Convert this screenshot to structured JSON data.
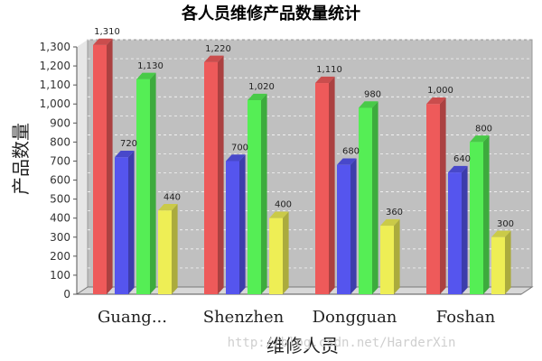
{
  "chart_data": {
    "type": "bar",
    "title": "各人员维修产品数量统计",
    "xlabel": "维修人员",
    "ylabel": "产品数量",
    "categories": [
      "Guang...",
      "Shenzhen",
      "Dongguan",
      "Foshan"
    ],
    "series": [
      {
        "values": [
          1310,
          1220,
          1110,
          1000
        ],
        "color": "#ee5a5a"
      },
      {
        "values": [
          720,
          700,
          680,
          640
        ],
        "color": "#5555ee"
      },
      {
        "values": [
          1130,
          1020,
          980,
          800
        ],
        "color": "#55ee55"
      },
      {
        "values": [
          440,
          400,
          360,
          300
        ],
        "color": "#eeee55"
      }
    ],
    "ylim": [
      0,
      1300
    ],
    "yticks": [
      "0",
      "100",
      "200",
      "300",
      "400",
      "500",
      "600",
      "700",
      "800",
      "900",
      "1,000",
      "1,100",
      "1,200",
      "1,300"
    ],
    "data_labels": [
      [
        "1,310",
        "1,220",
        "1,110",
        "1,000"
      ],
      [
        "720",
        "700",
        "680",
        "640"
      ],
      [
        "1,130",
        "1,020",
        "980",
        "800"
      ],
      [
        "440",
        "400",
        "360",
        "300"
      ]
    ],
    "grid": true,
    "style": "3d",
    "plot_background": "#c0c0c0"
  },
  "watermark": "http://blog.csdn.net/HarderXin"
}
